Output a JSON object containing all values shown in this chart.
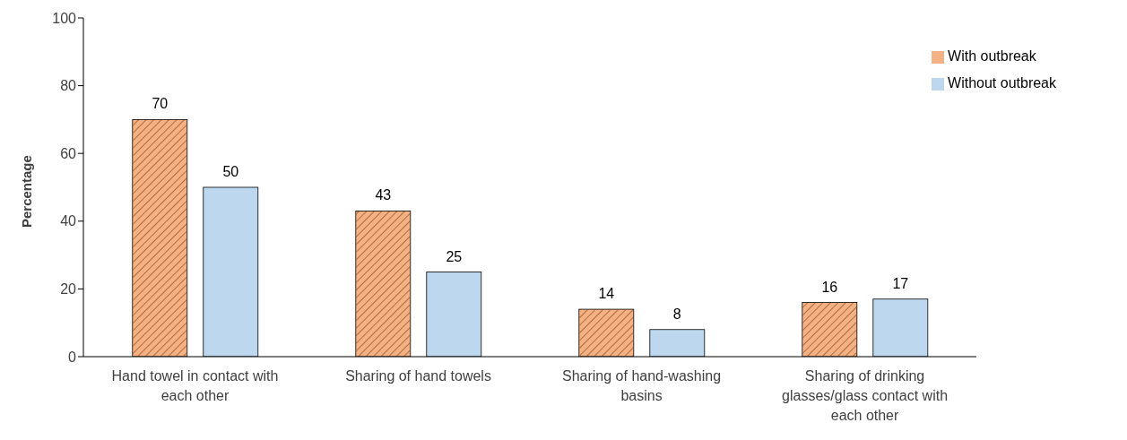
{
  "chart_data": {
    "type": "bar",
    "ylabel": "Percentage",
    "categories": [
      "Hand towel in contact with each other",
      "Sharing of hand towels",
      "Sharing of hand-washing basins",
      "Sharing of drinking glasses/glass contact with each other"
    ],
    "series": [
      {
        "name": "With outbreak",
        "color": "#f4b183",
        "values": [
          70,
          43,
          14,
          16
        ]
      },
      {
        "name": "Without outbreak",
        "color": "#bdd7ee",
        "values": [
          50,
          25,
          8,
          17
        ]
      }
    ],
    "ylim": [
      0,
      100
    ],
    "yticks": [
      0,
      20,
      40,
      60,
      80,
      100
    ],
    "legend": "top right",
    "data_labels": true
  }
}
